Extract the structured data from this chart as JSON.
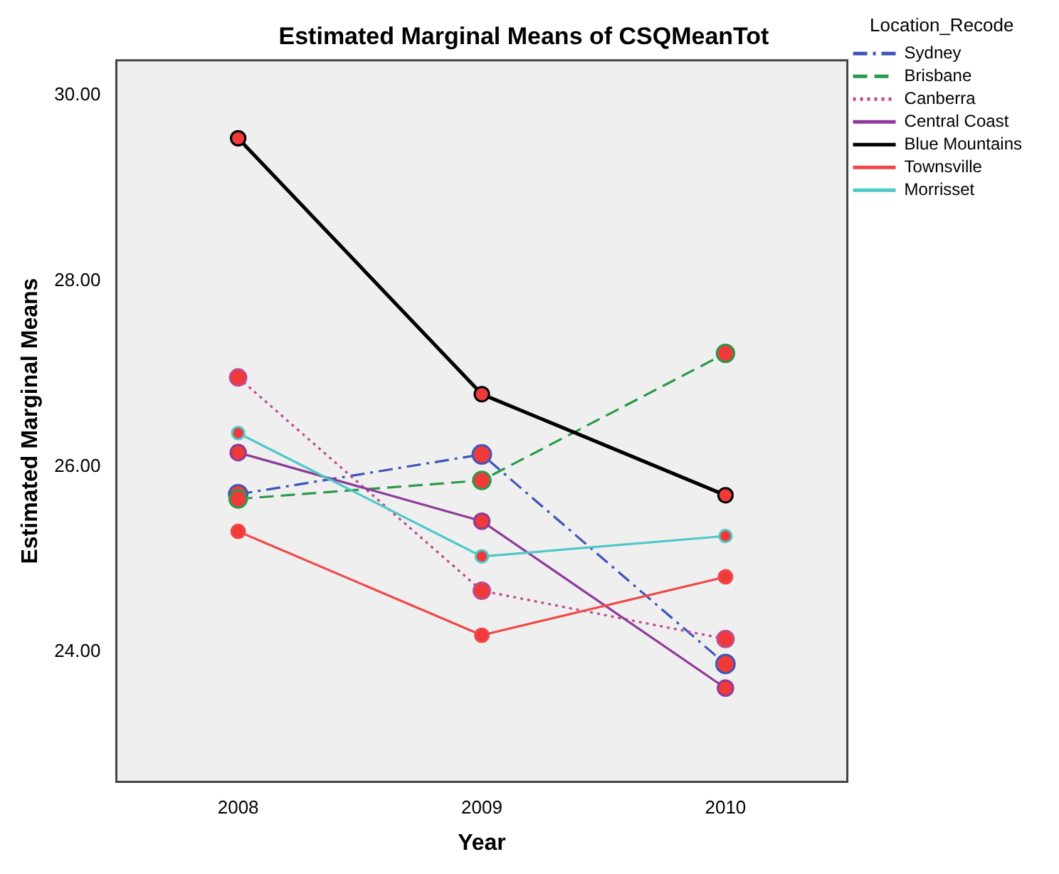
{
  "chart_data": {
    "type": "line",
    "title": "Estimated Marginal Means of CSQMeanTot",
    "xlabel": "Year",
    "ylabel": "Estimated Marginal Means",
    "legend_title": "Location_Recode",
    "legend": "right",
    "grid": false,
    "marker": "circle",
    "categories": [
      "2008",
      "2009",
      "2010"
    ],
    "ylim": [
      22.6,
      30.38
    ],
    "yticks": [
      {
        "value": 24,
        "label": "24.00"
      },
      {
        "value": 26,
        "label": "26.00"
      },
      {
        "value": 28,
        "label": "28.00"
      },
      {
        "value": 30,
        "label": "30.00"
      }
    ],
    "series": [
      {
        "name": "Sydney",
        "color": "#3d55b8",
        "line_style": "dashdot",
        "values": [
          25.7,
          26.13,
          23.87
        ]
      },
      {
        "name": "Brisbane",
        "color": "#2a9a4a",
        "line_style": "dashed",
        "values": [
          25.65,
          25.85,
          27.22
        ]
      },
      {
        "name": "Canberra",
        "color": "#c04a8e",
        "line_style": "dotted",
        "values": [
          26.96,
          24.66,
          24.14
        ]
      },
      {
        "name": "Central Coast",
        "color": "#8e3a99",
        "line_style": "solid",
        "values": [
          26.15,
          25.41,
          23.61
        ]
      },
      {
        "name": "Blue Mountains",
        "color": "#000000",
        "line_style": "solid",
        "values": [
          29.54,
          26.78,
          25.69
        ]
      },
      {
        "name": "Townsville",
        "color": "#f04848",
        "line_style": "solid",
        "values": [
          25.3,
          24.18,
          24.81
        ]
      },
      {
        "name": "Morrisset",
        "color": "#4ec8c8",
        "line_style": "solid",
        "values": [
          26.36,
          25.03,
          25.25
        ]
      }
    ]
  }
}
